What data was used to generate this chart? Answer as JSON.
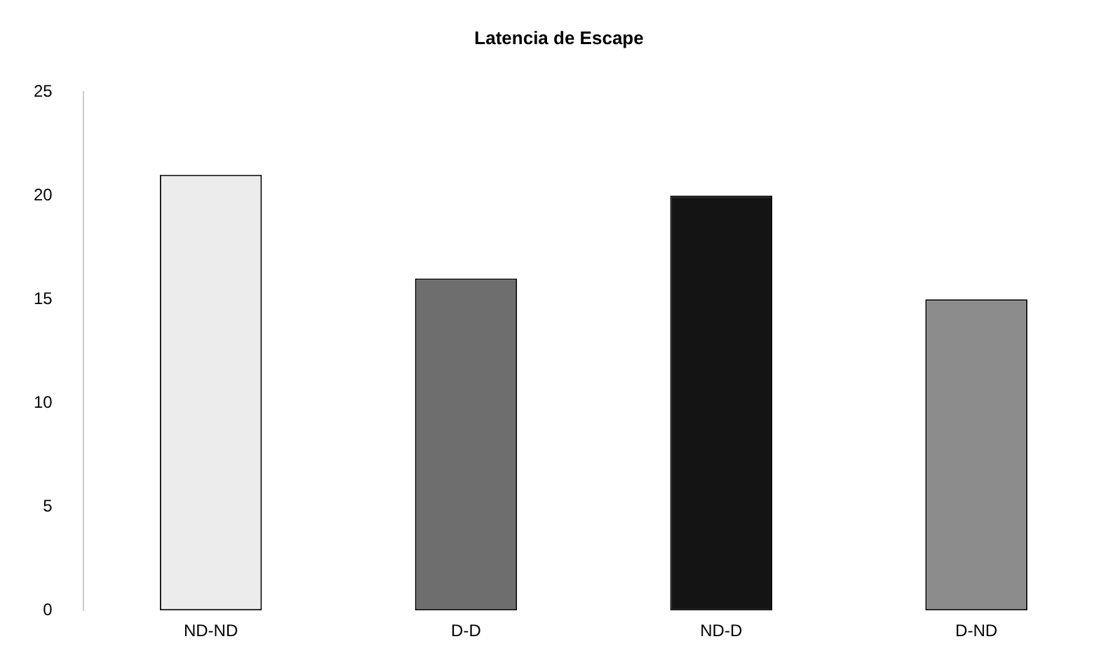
{
  "chart_data": {
    "type": "bar",
    "title": "Latencia de Escape",
    "categories": [
      "ND-ND",
      "D-D",
      "ND-D",
      "D-ND"
    ],
    "values": [
      21,
      16,
      20,
      15
    ],
    "colors": [
      "#ececec",
      "#6e6e6e",
      "#141414",
      "#8c8c8c"
    ],
    "ylim": [
      0,
      25
    ],
    "yticks": [
      0,
      5,
      10,
      15,
      20,
      25
    ],
    "grid": false,
    "legend": false
  }
}
